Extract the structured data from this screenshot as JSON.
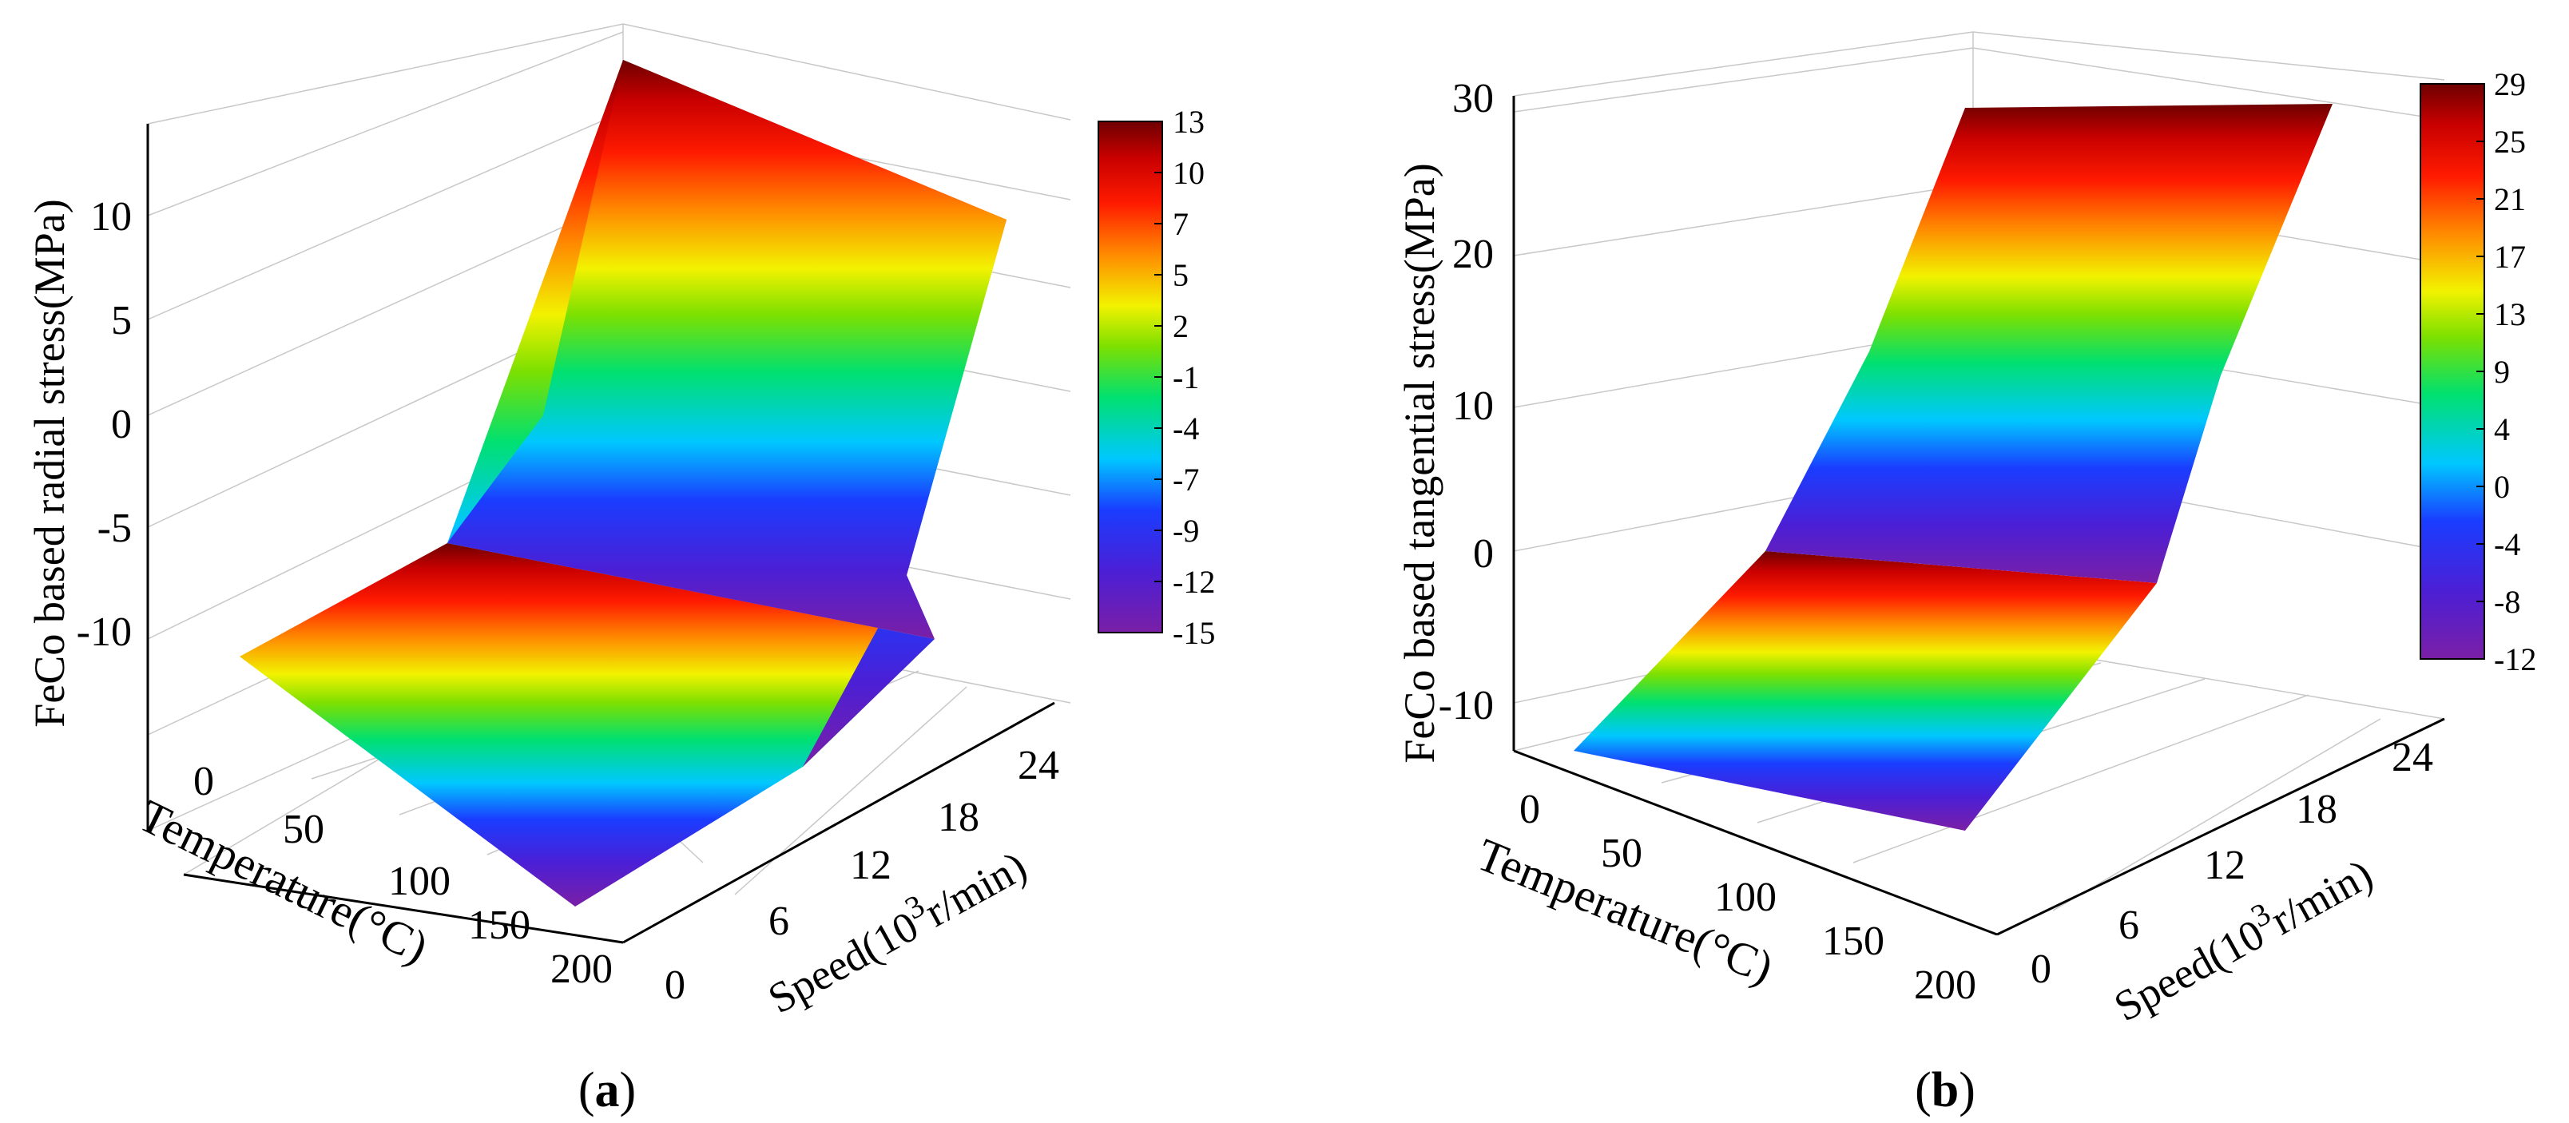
{
  "figure": {
    "panels": [
      {
        "id": "a",
        "caption_letter": "a",
        "zlabel": "FeCo based radial stress(MPa)",
        "xlabel_temp": "Temperature(",
        "xlabel_unit": "°C",
        "xlabel_close": ")",
        "ylabel_speed_pre": "Speed(10",
        "ylabel_speed_sup": "3",
        "ylabel_speed_post": "r/min)",
        "z_ticks": [
          "10",
          "5",
          "0",
          "-5",
          "-10"
        ],
        "x_ticks": [
          "0",
          "50",
          "100",
          "150",
          "200"
        ],
        "y_ticks": [
          "0",
          "6",
          "12",
          "18",
          "24"
        ],
        "colorbar_ticks": [
          "13",
          "10",
          "7",
          "5",
          "2",
          "-1",
          "-4",
          "-7",
          "-9",
          "-12",
          "-15"
        ]
      },
      {
        "id": "b",
        "caption_letter": "b",
        "zlabel": "FeCo based tangential stress(MPa)",
        "xlabel_temp": "Temperature(",
        "xlabel_unit": "°C",
        "xlabel_close": ")",
        "ylabel_speed_pre": "Speed(10",
        "ylabel_speed_sup": "3",
        "ylabel_speed_post": "r/min)",
        "z_ticks": [
          "30",
          "20",
          "10",
          "0",
          "-10"
        ],
        "x_ticks": [
          "0",
          "50",
          "100",
          "150",
          "200"
        ],
        "y_ticks": [
          "0",
          "6",
          "12",
          "18",
          "24"
        ],
        "colorbar_ticks": [
          "29",
          "25",
          "21",
          "17",
          "13",
          "9",
          "4",
          "0",
          "-4",
          "-8",
          "-12"
        ]
      }
    ]
  },
  "chart_data": [
    {
      "type": "surface3d",
      "title": "",
      "xlabel": "Temperature(°C)",
      "ylabel": "Speed(10^3 r/min)",
      "zlabel": "FeCo based radial stress(MPa)",
      "x_range": [
        0,
        200
      ],
      "y_range": [
        0,
        24
      ],
      "z_range": [
        -15,
        13
      ],
      "temperature": [
        0,
        200
      ],
      "speed": [
        0,
        12,
        24
      ],
      "stress_grid": [
        [
          -11.5,
          -5.5,
          13
        ],
        [
          -15,
          -12,
          10.5
        ]
      ],
      "colorbar": {
        "min": -15,
        "max": 13,
        "colormap": "rainbow"
      }
    },
    {
      "type": "surface3d",
      "title": "",
      "xlabel": "Temperature(°C)",
      "ylabel": "Speed(10^3 r/min)",
      "zlabel": "FeCo based tangential stress(MPa)",
      "x_range": [
        0,
        200
      ],
      "y_range": [
        0,
        24
      ],
      "z_range": [
        -12,
        29
      ],
      "temperature": [
        0,
        200
      ],
      "speed": [
        0,
        12,
        24
      ],
      "stress_grid": [
        [
          -12,
          0.5,
          28.5
        ],
        [
          -11,
          0,
          29
        ]
      ],
      "colorbar": {
        "min": -12,
        "max": 29,
        "colormap": "rainbow"
      }
    }
  ]
}
